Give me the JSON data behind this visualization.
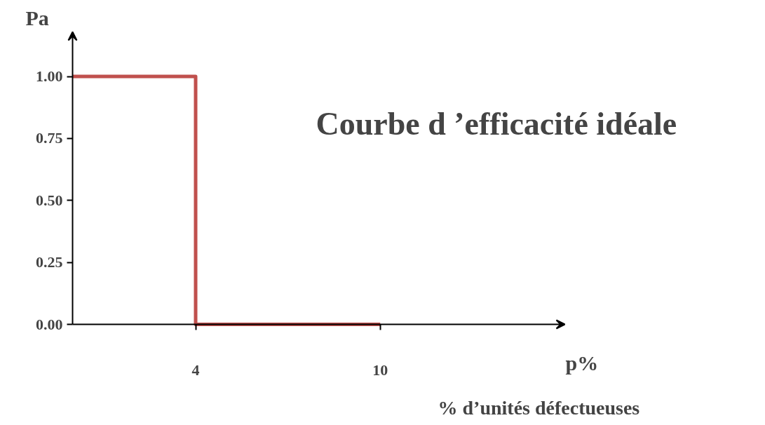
{
  "chart_data": {
    "type": "step",
    "title": "Courbe d ’efficacité idéale",
    "xlabel": "p%",
    "ylabel": "Pa",
    "annotations": [
      "% d’unités défectueuses"
    ],
    "x": [
      0,
      4,
      10
    ],
    "series": [
      {
        "color": "#c0504d",
        "values": [
          1,
          0,
          0
        ]
      }
    ],
    "xlim": [
      0,
      16
    ],
    "xticks": [
      4,
      10
    ],
    "ylim": [
      0,
      1.18
    ],
    "yticks": [
      {
        "value": 0,
        "label": "0.00"
      },
      {
        "value": 0.25,
        "label": "0.25"
      },
      {
        "value": 0.5,
        "label": "0.50"
      },
      {
        "value": 0.75,
        "label": "0.75"
      },
      {
        "value": 1,
        "label": "1.00"
      }
    ],
    "grid": false,
    "marker": "none",
    "line_style": "solid"
  }
}
